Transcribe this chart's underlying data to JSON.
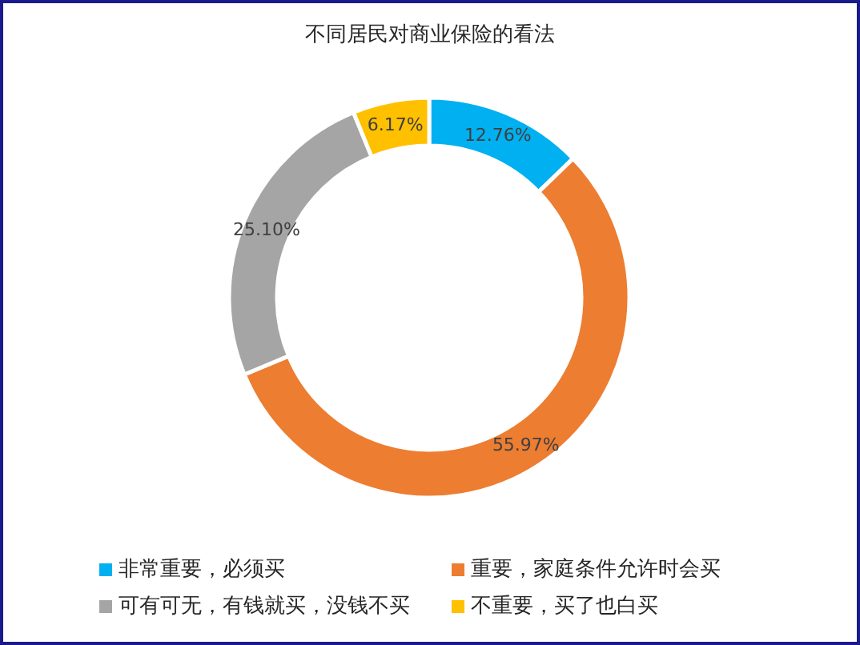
{
  "chart_data": {
    "type": "donut",
    "title": "不同居民对商业保险的看法",
    "categories": [
      "非常重要，必须买",
      "重要，家庭条件允许时会买",
      "可有可无，有钱就买，没钱不买",
      "不重要，买了也白买"
    ],
    "values": [
      12.76,
      55.97,
      25.1,
      6.17
    ],
    "colors": [
      "#00b0f0",
      "#ed7d31",
      "#a5a5a5",
      "#ffc000"
    ],
    "value_labels": [
      "12.76%",
      "55.97%",
      "25.10%",
      "6.17%"
    ],
    "legend": "bottom"
  }
}
